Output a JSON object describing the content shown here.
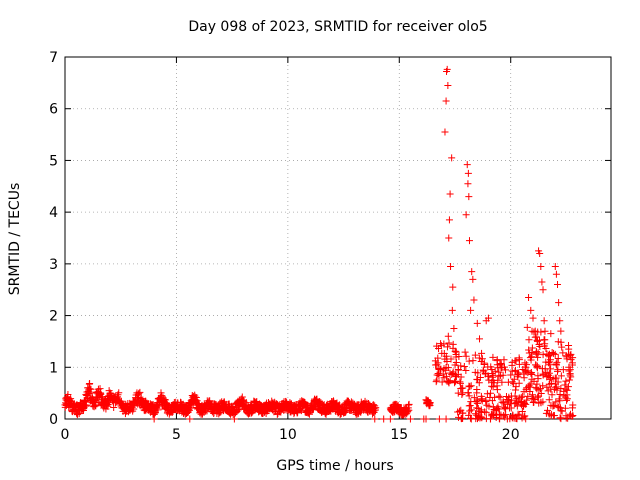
{
  "chart_data": {
    "type": "scatter",
    "title": "Day 098 of 2023, SRMTID for receiver olo5",
    "xlabel": "GPS time / hours",
    "ylabel": "SRMTID / TECUs",
    "xlim": [
      0,
      24.5
    ],
    "ylim": [
      0,
      7
    ],
    "xticks": [
      0,
      5,
      10,
      15,
      20
    ],
    "yticks": [
      0,
      1,
      2,
      3,
      4,
      5,
      6,
      7
    ],
    "grid": true,
    "marker": "plus",
    "color": "#ff0000",
    "segments": [
      {
        "x0": 0.0,
        "x1": 13.95,
        "base": 0.22,
        "amp": 0.1,
        "spikes": [
          [
            0.1,
            0.38
          ],
          [
            1.1,
            0.7
          ],
          [
            1.5,
            0.55
          ],
          [
            2.0,
            0.6
          ],
          [
            2.4,
            0.45
          ],
          [
            3.3,
            0.55
          ],
          [
            4.3,
            0.42
          ],
          [
            5.8,
            0.4
          ],
          [
            8.0,
            0.33
          ],
          [
            11.2,
            0.36
          ]
        ],
        "step": 0.012
      },
      {
        "x0": 14.6,
        "x1": 15.45,
        "base": 0.18,
        "amp": 0.08,
        "spikes": [],
        "step": 0.012
      },
      {
        "x0": 16.2,
        "x1": 16.4,
        "base": 0.28,
        "amp": 0.06,
        "spikes": [],
        "step": 0.012
      }
    ],
    "zeros": [
      4.0,
      5.6,
      7.6,
      13.9,
      14.3,
      14.6,
      15.5,
      16.1,
      16.2,
      16.8,
      17.1
    ],
    "peaks": [
      [
        17.15,
        6.76
      ],
      [
        17.12,
        6.72
      ],
      [
        17.18,
        6.45
      ],
      [
        17.1,
        6.15
      ],
      [
        17.05,
        5.55
      ],
      [
        17.35,
        5.05
      ],
      [
        17.28,
        4.35
      ],
      [
        17.25,
        3.85
      ],
      [
        17.22,
        3.5
      ],
      [
        17.3,
        2.95
      ],
      [
        17.4,
        2.55
      ],
      [
        17.38,
        2.1
      ],
      [
        17.45,
        1.75
      ],
      [
        17.2,
        1.6
      ],
      [
        17.0,
        1.45
      ],
      [
        18.05,
        4.92
      ],
      [
        18.1,
        4.75
      ],
      [
        18.08,
        4.55
      ],
      [
        18.12,
        4.3
      ],
      [
        18.0,
        3.95
      ],
      [
        18.15,
        3.45
      ],
      [
        18.25,
        2.85
      ],
      [
        18.3,
        2.7
      ],
      [
        18.35,
        2.3
      ],
      [
        18.2,
        2.1
      ],
      [
        18.5,
        1.85
      ],
      [
        18.6,
        1.55
      ],
      [
        18.9,
        1.9
      ],
      [
        19.0,
        1.95
      ],
      [
        19.6,
        1.0
      ],
      [
        19.4,
        1.05
      ],
      [
        20.0,
        0.85
      ],
      [
        20.8,
        2.35
      ],
      [
        20.9,
        2.1
      ],
      [
        21.0,
        1.95
      ],
      [
        21.1,
        1.7
      ],
      [
        21.2,
        1.5
      ],
      [
        21.25,
        3.25
      ],
      [
        21.3,
        3.2
      ],
      [
        21.35,
        2.95
      ],
      [
        21.4,
        2.65
      ],
      [
        21.45,
        2.5
      ],
      [
        21.5,
        1.9
      ],
      [
        21.8,
        1.65
      ],
      [
        22.0,
        2.95
      ],
      [
        22.05,
        2.8
      ],
      [
        22.1,
        2.6
      ],
      [
        22.15,
        2.25
      ],
      [
        22.2,
        1.9
      ],
      [
        22.25,
        1.7
      ],
      [
        22.6,
        1.35
      ],
      [
        22.7,
        1.25
      ]
    ],
    "clusters": [
      {
        "x0": 16.6,
        "x1": 17.6,
        "lo": 0.7,
        "hi": 1.5,
        "n": 60
      },
      {
        "x0": 17.6,
        "x1": 18.9,
        "lo": 0.0,
        "hi": 1.3,
        "n": 90
      },
      {
        "x0": 18.9,
        "x1": 20.7,
        "lo": 0.0,
        "hi": 1.2,
        "n": 150
      },
      {
        "x0": 20.7,
        "x1": 21.6,
        "lo": 0.3,
        "hi": 1.8,
        "n": 80
      },
      {
        "x0": 21.6,
        "x1": 22.8,
        "lo": 0.0,
        "hi": 1.5,
        "n": 110
      }
    ]
  }
}
